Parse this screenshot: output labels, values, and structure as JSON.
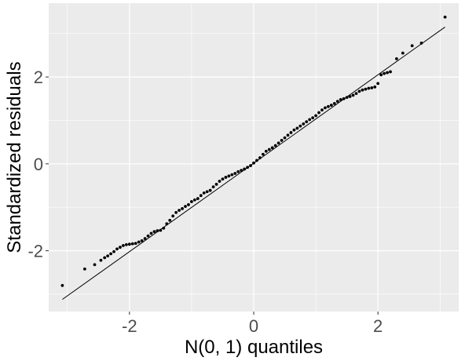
{
  "chart_data": {
    "type": "scatter",
    "title": "",
    "xlabel": "N(0, 1) quantiles",
    "ylabel": "Standardized residuals",
    "xlim": [
      -3.3,
      3.3
    ],
    "ylim": [
      -3.4,
      3.7
    ],
    "x_ticks": [
      -2,
      0,
      2
    ],
    "y_ticks": [
      -2,
      0,
      2
    ],
    "x_minor": [
      -3,
      -1,
      1,
      3
    ],
    "y_minor": [
      -3,
      -1,
      1,
      3
    ],
    "x_tick_labels": [
      "-2",
      "0",
      "2"
    ],
    "y_tick_labels": [
      "-2",
      "0",
      "2"
    ],
    "grid": true,
    "legend": "none",
    "reference_line": {
      "x": [
        -3.08,
        3.08
      ],
      "y": [
        -3.12,
        3.15
      ]
    },
    "points": {
      "x": [
        -3.08,
        -2.72,
        -2.56,
        -2.46,
        -2.4,
        -2.35,
        -2.3,
        -2.25,
        -2.2,
        -2.15,
        -2.1,
        -2.05,
        -2.0,
        -1.95,
        -1.9,
        -1.85,
        -1.8,
        -1.75,
        -1.7,
        -1.65,
        -1.6,
        -1.55,
        -1.5,
        -1.45,
        -1.4,
        -1.35,
        -1.3,
        -1.25,
        -1.2,
        -1.15,
        -1.1,
        -1.05,
        -1.0,
        -0.95,
        -0.9,
        -0.85,
        -0.8,
        -0.75,
        -0.7,
        -0.65,
        -0.6,
        -0.55,
        -0.5,
        -0.45,
        -0.4,
        -0.35,
        -0.3,
        -0.25,
        -0.2,
        -0.15,
        -0.1,
        -0.05,
        0.0,
        0.05,
        0.1,
        0.15,
        0.2,
        0.25,
        0.3,
        0.35,
        0.4,
        0.45,
        0.5,
        0.55,
        0.6,
        0.65,
        0.7,
        0.75,
        0.8,
        0.85,
        0.9,
        0.95,
        1.0,
        1.05,
        1.1,
        1.15,
        1.2,
        1.25,
        1.3,
        1.35,
        1.4,
        1.45,
        1.5,
        1.55,
        1.6,
        1.65,
        1.7,
        1.75,
        1.8,
        1.85,
        1.9,
        1.95,
        2.0,
        2.05,
        2.1,
        2.15,
        2.2,
        2.3,
        2.4,
        2.55,
        2.7,
        3.08
      ],
      "y": [
        -2.8,
        -2.42,
        -2.32,
        -2.22,
        -2.16,
        -2.12,
        -2.07,
        -2.02,
        -1.96,
        -1.92,
        -1.88,
        -1.86,
        -1.85,
        -1.84,
        -1.83,
        -1.8,
        -1.77,
        -1.72,
        -1.66,
        -1.6,
        -1.56,
        -1.54,
        -1.53,
        -1.48,
        -1.38,
        -1.3,
        -1.2,
        -1.12,
        -1.07,
        -1.03,
        -0.98,
        -0.94,
        -0.87,
        -0.83,
        -0.8,
        -0.73,
        -0.67,
        -0.64,
        -0.61,
        -0.53,
        -0.47,
        -0.4,
        -0.35,
        -0.31,
        -0.28,
        -0.25,
        -0.22,
        -0.18,
        -0.15,
        -0.12,
        -0.08,
        -0.04,
        0.02,
        0.08,
        0.14,
        0.22,
        0.29,
        0.33,
        0.37,
        0.42,
        0.48,
        0.54,
        0.6,
        0.66,
        0.72,
        0.78,
        0.82,
        0.87,
        0.92,
        0.97,
        1.02,
        1.06,
        1.11,
        1.18,
        1.24,
        1.29,
        1.32,
        1.35,
        1.39,
        1.44,
        1.48,
        1.5,
        1.53,
        1.55,
        1.58,
        1.62,
        1.67,
        1.7,
        1.72,
        1.74,
        1.75,
        1.77,
        1.85,
        2.05,
        2.08,
        2.1,
        2.12,
        2.42,
        2.55,
        2.72,
        2.78,
        3.38
      ]
    }
  }
}
